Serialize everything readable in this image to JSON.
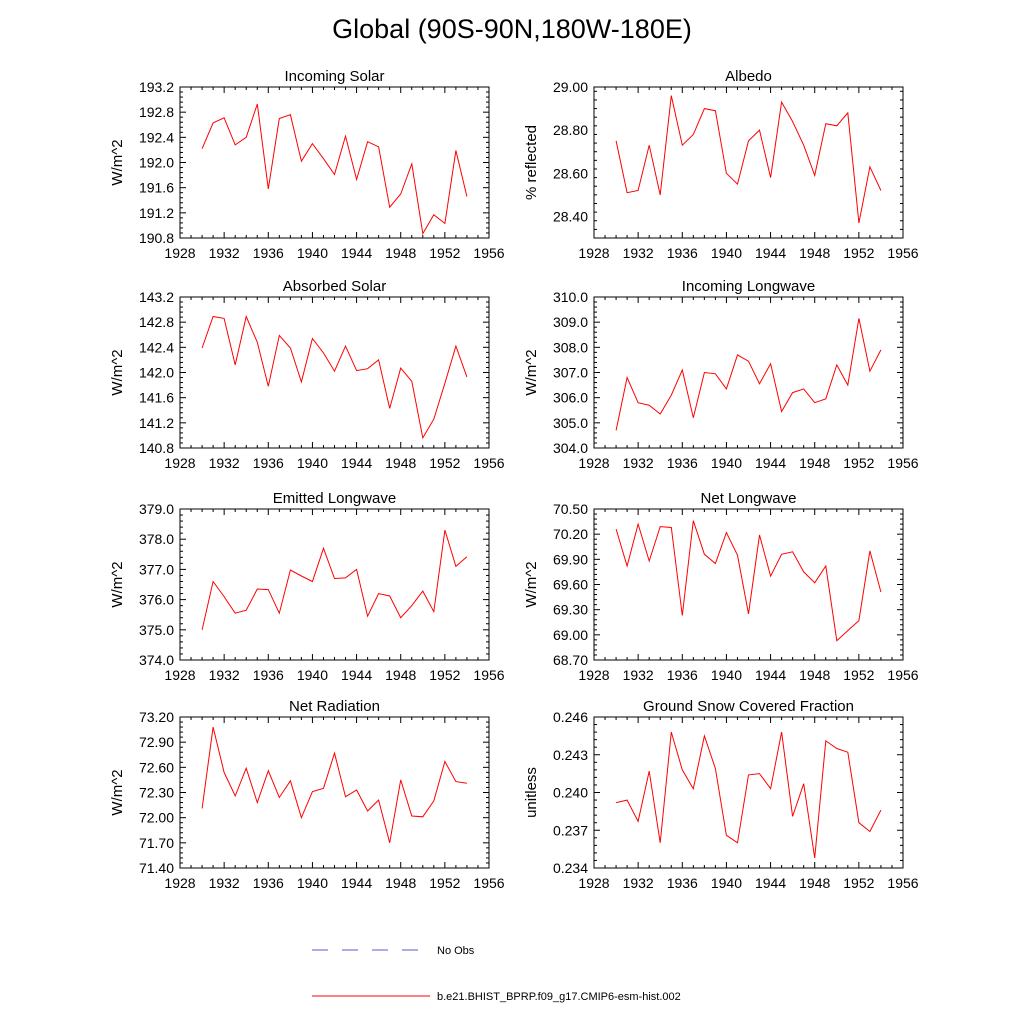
{
  "figure": {
    "title": "Global (90S-90N,180W-180E)"
  },
  "legend": {
    "entries": [
      {
        "label": "No Obs",
        "color": "#5a5ad6",
        "style": "dashed"
      },
      {
        "label": "b.e21.BHIST_BPRP.f09_g17.CMIP6-esm-hist.002",
        "color": "#ff0000",
        "style": "solid"
      }
    ]
  },
  "colors": {
    "series": "#ff0000",
    "axis": "#000000"
  },
  "chart_data": [
    {
      "type": "line",
      "title": "Incoming Solar",
      "ylabel": "W/m^2",
      "xlim": [
        1928,
        1956
      ],
      "xticks": [
        1928,
        1932,
        1936,
        1940,
        1944,
        1948,
        1952,
        1956
      ],
      "ylim": [
        190.8,
        193.2
      ],
      "yticks": [
        "190.8",
        "191.2",
        "191.6",
        "192.0",
        "192.4",
        "192.8",
        "193.2"
      ],
      "x": [
        1930,
        1931,
        1932,
        1933,
        1934,
        1935,
        1936,
        1937,
        1938,
        1939,
        1940,
        1941,
        1942,
        1943,
        1944,
        1945,
        1946,
        1947,
        1948,
        1949,
        1950,
        1951,
        1952,
        1953,
        1954
      ],
      "y": [
        192.22,
        192.63,
        192.71,
        192.28,
        192.4,
        192.93,
        191.58,
        192.7,
        192.76,
        192.02,
        192.3,
        192.06,
        191.81,
        192.42,
        191.73,
        192.33,
        192.25,
        191.29,
        191.5,
        191.98,
        190.87,
        191.17,
        191.03,
        192.19,
        191.46
      ],
      "series_name": "b.e21.BHIST_BPRP.f09_g17.CMIP6-esm-hist.002"
    },
    {
      "type": "line",
      "title": "Albedo",
      "ylabel": "% reflected",
      "xlim": [
        1928,
        1956
      ],
      "xticks": [
        1928,
        1932,
        1936,
        1940,
        1944,
        1948,
        1952,
        1956
      ],
      "ylim": [
        28.3,
        29.0
      ],
      "yticks": [
        "28.40",
        "28.60",
        "28.80",
        "29.00"
      ],
      "x": [
        1930,
        1931,
        1932,
        1933,
        1934,
        1935,
        1936,
        1937,
        1938,
        1939,
        1940,
        1941,
        1942,
        1943,
        1944,
        1945,
        1946,
        1947,
        1948,
        1949,
        1950,
        1951,
        1952,
        1953,
        1954
      ],
      "y": [
        28.75,
        28.51,
        28.52,
        28.73,
        28.5,
        28.96,
        28.73,
        28.78,
        28.9,
        28.89,
        28.6,
        28.55,
        28.75,
        28.8,
        28.58,
        28.93,
        28.84,
        28.73,
        28.59,
        28.83,
        28.82,
        28.88,
        28.37,
        28.63,
        28.52
      ],
      "series_name": "b.e21.BHIST_BPRP.f09_g17.CMIP6-esm-hist.002"
    },
    {
      "type": "line",
      "title": "Absorbed Solar",
      "ylabel": "W/m^2",
      "xlim": [
        1928,
        1956
      ],
      "xticks": [
        1928,
        1932,
        1936,
        1940,
        1944,
        1948,
        1952,
        1956
      ],
      "ylim": [
        140.8,
        143.2
      ],
      "yticks": [
        "140.8",
        "141.2",
        "141.6",
        "142.0",
        "142.4",
        "142.8",
        "143.2"
      ],
      "x": [
        1930,
        1931,
        1932,
        1933,
        1934,
        1935,
        1936,
        1937,
        1938,
        1939,
        1940,
        1941,
        1942,
        1943,
        1944,
        1945,
        1946,
        1947,
        1948,
        1949,
        1950,
        1951,
        1952,
        1953,
        1954
      ],
      "y": [
        142.39,
        142.89,
        142.86,
        142.12,
        142.89,
        142.48,
        141.78,
        142.59,
        142.39,
        141.85,
        142.54,
        142.31,
        142.02,
        142.42,
        142.03,
        142.06,
        142.2,
        141.43,
        142.07,
        141.86,
        140.96,
        141.26,
        141.83,
        142.42,
        141.93
      ],
      "series_name": "b.e21.BHIST_BPRP.f09_g17.CMIP6-esm-hist.002"
    },
    {
      "type": "line",
      "title": "Incoming Longwave",
      "ylabel": "W/m^2",
      "xlim": [
        1928,
        1956
      ],
      "xticks": [
        1928,
        1932,
        1936,
        1940,
        1944,
        1948,
        1952,
        1956
      ],
      "ylim": [
        304.0,
        310.0
      ],
      "yticks": [
        "304.0",
        "305.0",
        "306.0",
        "307.0",
        "308.0",
        "309.0",
        "310.0"
      ],
      "x": [
        1930,
        1931,
        1932,
        1933,
        1934,
        1935,
        1936,
        1937,
        1938,
        1939,
        1940,
        1941,
        1942,
        1943,
        1944,
        1945,
        1946,
        1947,
        1948,
        1949,
        1950,
        1951,
        1952,
        1953,
        1954
      ],
      "y": [
        304.7,
        306.8,
        305.8,
        305.7,
        305.35,
        306.1,
        307.1,
        305.2,
        307.0,
        306.95,
        306.35,
        307.7,
        307.45,
        306.55,
        307.35,
        305.45,
        306.2,
        306.35,
        305.8,
        305.95,
        307.3,
        306.5,
        309.15,
        307.05,
        307.9
      ],
      "series_name": "b.e21.BHIST_BPRP.f09_g17.CMIP6-esm-hist.002"
    },
    {
      "type": "line",
      "title": "Emitted Longwave",
      "ylabel": "W/m^2",
      "xlim": [
        1928,
        1956
      ],
      "xticks": [
        1928,
        1932,
        1936,
        1940,
        1944,
        1948,
        1952,
        1956
      ],
      "ylim": [
        374.0,
        379.0
      ],
      "yticks": [
        "374.0",
        "375.0",
        "376.0",
        "377.0",
        "378.0",
        "379.0"
      ],
      "x": [
        1930,
        1931,
        1932,
        1933,
        1934,
        1935,
        1936,
        1937,
        1938,
        1939,
        1940,
        1941,
        1942,
        1943,
        1944,
        1945,
        1946,
        1947,
        1948,
        1949,
        1950,
        1951,
        1952,
        1953,
        1954
      ],
      "y": [
        375.0,
        376.6,
        376.1,
        375.55,
        375.65,
        376.35,
        376.33,
        375.55,
        376.98,
        376.78,
        376.6,
        377.7,
        376.7,
        376.72,
        377.0,
        375.45,
        376.2,
        376.12,
        375.4,
        375.8,
        376.28,
        375.6,
        378.3,
        377.1,
        377.42
      ],
      "series_name": "b.e21.BHIST_BPRP.f09_g17.CMIP6-esm-hist.002"
    },
    {
      "type": "line",
      "title": "Net Longwave",
      "ylabel": "W/m^2",
      "xlim": [
        1928,
        1956
      ],
      "xticks": [
        1928,
        1932,
        1936,
        1940,
        1944,
        1948,
        1952,
        1956
      ],
      "ylim": [
        68.7,
        70.5
      ],
      "yticks": [
        "68.70",
        "69.00",
        "69.30",
        "69.60",
        "69.90",
        "70.20",
        "70.50"
      ],
      "x": [
        1930,
        1931,
        1932,
        1933,
        1934,
        1935,
        1936,
        1937,
        1938,
        1939,
        1940,
        1941,
        1942,
        1943,
        1944,
        1945,
        1946,
        1947,
        1948,
        1949,
        1950,
        1951,
        1952,
        1953,
        1954
      ],
      "y": [
        70.26,
        69.82,
        70.32,
        69.88,
        70.29,
        70.28,
        69.23,
        70.36,
        69.96,
        69.85,
        70.22,
        69.95,
        69.25,
        70.19,
        69.7,
        69.96,
        69.99,
        69.75,
        69.62,
        69.82,
        68.93,
        69.05,
        69.17,
        70.0,
        69.51
      ],
      "series_name": "b.e21.BHIST_BPRP.f09_g17.CMIP6-esm-hist.002"
    },
    {
      "type": "line",
      "title": "Net Radiation",
      "ylabel": "W/m^2",
      "xlim": [
        1928,
        1956
      ],
      "xticks": [
        1928,
        1932,
        1936,
        1940,
        1944,
        1948,
        1952,
        1956
      ],
      "ylim": [
        71.4,
        73.2
      ],
      "yticks": [
        "71.40",
        "71.70",
        "72.00",
        "72.30",
        "72.60",
        "72.90",
        "73.20"
      ],
      "x": [
        1930,
        1931,
        1932,
        1933,
        1934,
        1935,
        1936,
        1937,
        1938,
        1939,
        1940,
        1941,
        1942,
        1943,
        1944,
        1945,
        1946,
        1947,
        1948,
        1949,
        1950,
        1951,
        1952,
        1953,
        1954
      ],
      "y": [
        72.11,
        73.08,
        72.54,
        72.26,
        72.59,
        72.18,
        72.56,
        72.24,
        72.44,
        72.0,
        72.31,
        72.35,
        72.77,
        72.25,
        72.33,
        72.08,
        72.21,
        71.7,
        72.45,
        72.02,
        72.01,
        72.2,
        72.67,
        72.43,
        72.41
      ],
      "series_name": "b.e21.BHIST_BPRP.f09_g17.CMIP6-esm-hist.002"
    },
    {
      "type": "line",
      "title": "Ground Snow Covered Fraction",
      "ylabel": "unitless",
      "xlim": [
        1928,
        1956
      ],
      "xticks": [
        1928,
        1932,
        1936,
        1940,
        1944,
        1948,
        1952,
        1956
      ],
      "ylim": [
        0.234,
        0.246
      ],
      "yticks": [
        "0.234",
        "0.237",
        "0.240",
        "0.243",
        "0.246"
      ],
      "x": [
        1930,
        1931,
        1932,
        1933,
        1934,
        1935,
        1936,
        1937,
        1938,
        1939,
        1940,
        1941,
        1942,
        1943,
        1944,
        1945,
        1946,
        1947,
        1948,
        1949,
        1950,
        1951,
        1952,
        1953,
        1954
      ],
      "y": [
        0.2392,
        0.2394,
        0.2377,
        0.2417,
        0.236,
        0.2448,
        0.2418,
        0.2403,
        0.2445,
        0.2419,
        0.2366,
        0.236,
        0.2414,
        0.2415,
        0.2403,
        0.2448,
        0.2381,
        0.2407,
        0.2348,
        0.2441,
        0.2435,
        0.2432,
        0.2376,
        0.2369,
        0.2386
      ],
      "series_name": "b.e21.BHIST_BPRP.f09_g17.CMIP6-esm-hist.002"
    }
  ]
}
